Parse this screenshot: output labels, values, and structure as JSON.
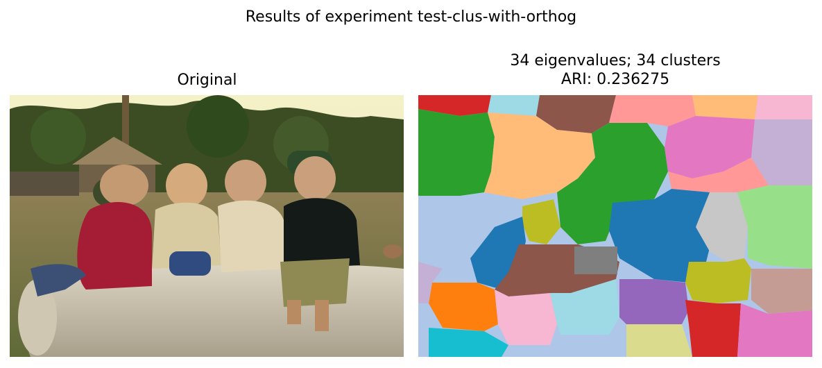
{
  "figure": {
    "suptitle": "Results of experiment test-clus-with-orthog"
  },
  "panels": {
    "left": {
      "title": "Original"
    },
    "right": {
      "title_line1": "34 eigenvalues; 34 clusters",
      "title_line2": "ARI: 0.236275"
    }
  },
  "chart_data": [
    {
      "type": "image",
      "title": "Original",
      "content": "photograph of four children sitting on a concrete pipe"
    },
    {
      "type": "segmentation",
      "title": "34 eigenvalues; 34 clusters\nARI: 0.236275",
      "n_eigenvalues": 34,
      "n_clusters": 34,
      "ari": 0.236275,
      "palette": "tab20"
    }
  ]
}
